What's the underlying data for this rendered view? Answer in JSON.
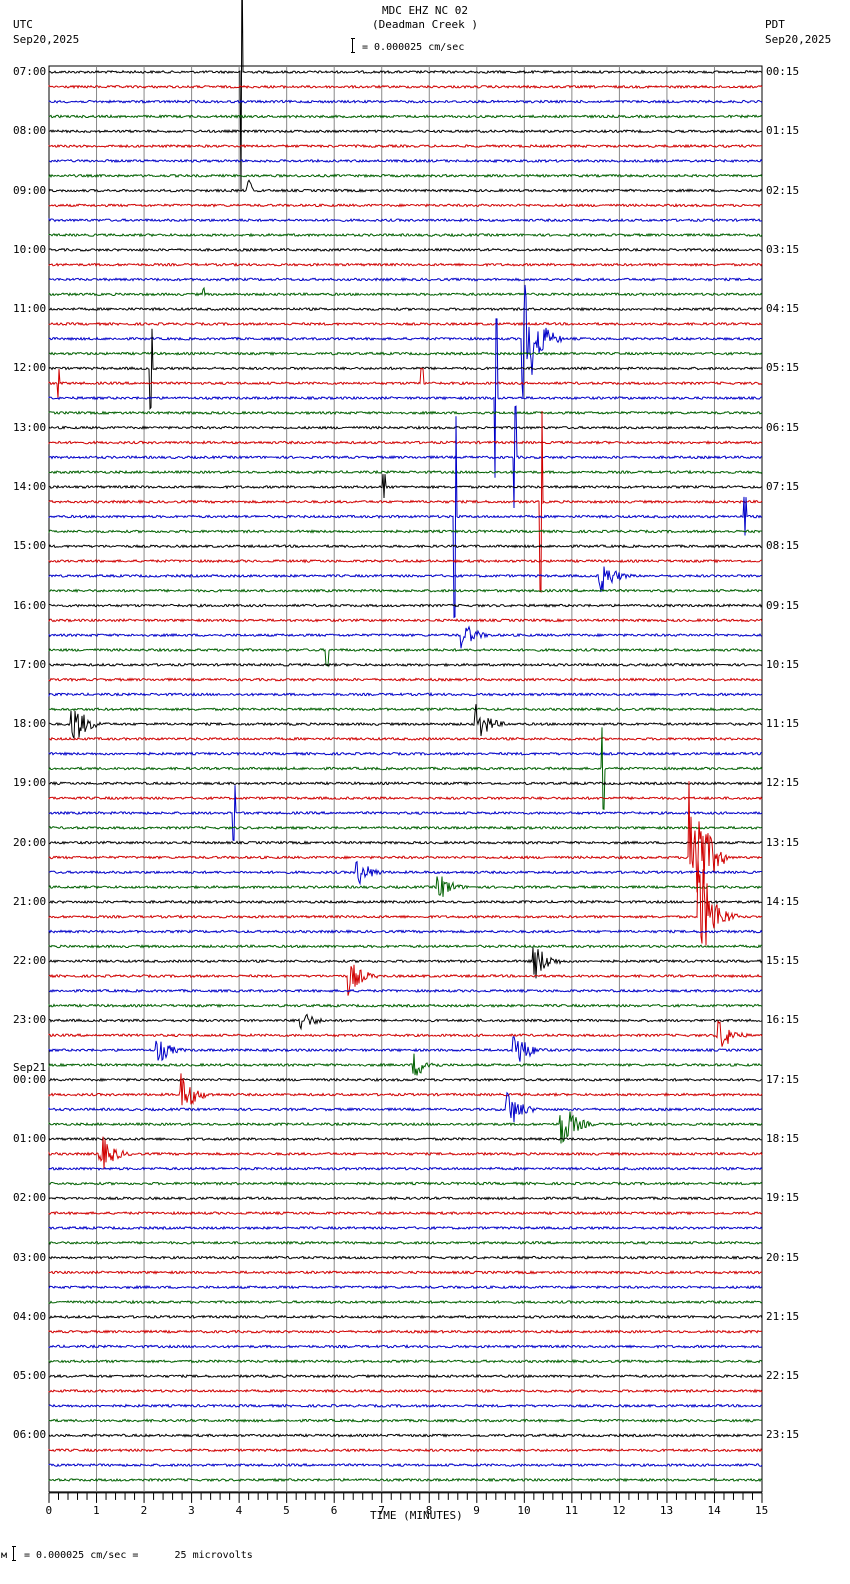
{
  "header": {
    "station_line": "MDC EHZ NC 02",
    "station_name": "(Deadman Creek )",
    "scale_text": "= 0.000025 cm/sec",
    "left_tz": "UTC",
    "left_date": "Sep20,2025",
    "right_tz": "PDT",
    "right_date": "Sep20,2025"
  },
  "footer": {
    "scale_text": "= 0.000025 cm/sec =      25 microvolts",
    "scale_prefix": "м"
  },
  "colors": {
    "trace_cycle": [
      "#000000",
      "#d00000",
      "#0000c8",
      "#006000"
    ],
    "grid": "#888888"
  },
  "chart_data": {
    "type": "line",
    "title": "MDC EHZ NC 02 (Deadman Creek )",
    "subtitle": "= 0.000025 cm/sec",
    "xlabel": "TIME (MINUTES)",
    "ylabel": "",
    "xlim": [
      0,
      15
    ],
    "x_ticks": [
      "0",
      "1",
      "2",
      "3",
      "4",
      "5",
      "6",
      "7",
      "8",
      "9",
      "10",
      "11",
      "12",
      "13",
      "14",
      "15"
    ],
    "grid": true,
    "traces_per_hour": 4,
    "trace_minutes": 15,
    "utc_labels": [
      "07:00",
      "08:00",
      "09:00",
      "10:00",
      "11:00",
      "12:00",
      "13:00",
      "14:00",
      "15:00",
      "16:00",
      "17:00",
      "18:00",
      "19:00",
      "20:00",
      "21:00",
      "22:00",
      "23:00",
      "00:00",
      "01:00",
      "02:00",
      "03:00",
      "04:00",
      "05:00",
      "06:00"
    ],
    "utc_date_change": {
      "label": "Sep21",
      "before_index": 17
    },
    "pdt_labels": [
      "00:15",
      "01:15",
      "02:15",
      "03:15",
      "04:15",
      "05:15",
      "06:15",
      "07:15",
      "08:15",
      "09:15",
      "10:15",
      "11:15",
      "12:15",
      "13:15",
      "14:15",
      "15:15",
      "16:15",
      "17:15",
      "18:15",
      "19:15",
      "20:15",
      "21:15",
      "22:15",
      "23:15"
    ],
    "events": [
      {
        "trace": 0,
        "minute": 4.05,
        "amp": 120,
        "kind": "spike"
      },
      {
        "trace": 8,
        "minute": 4.15,
        "amp": 20,
        "kind": "pulse"
      },
      {
        "trace": 15,
        "minute": 3.25,
        "amp": 6,
        "kind": "spike"
      },
      {
        "trace": 18,
        "minute": 10.0,
        "amp": 70,
        "kind": "quake"
      },
      {
        "trace": 20,
        "minute": 2.15,
        "amp": 40,
        "kind": "spike"
      },
      {
        "trace": 21,
        "minute": 0.2,
        "amp": 14,
        "kind": "spike"
      },
      {
        "trace": 21,
        "minute": 7.85,
        "amp": 14,
        "kind": "spike"
      },
      {
        "trace": 22,
        "minute": 9.4,
        "amp": 80,
        "kind": "spike"
      },
      {
        "trace": 26,
        "minute": 9.8,
        "amp": 50,
        "kind": "spike"
      },
      {
        "trace": 28,
        "minute": 7.05,
        "amp": 12,
        "kind": "spike"
      },
      {
        "trace": 29,
        "minute": 10.35,
        "amp": 90,
        "kind": "spike"
      },
      {
        "trace": 30,
        "minute": 8.55,
        "amp": 100,
        "kind": "spike"
      },
      {
        "trace": 30,
        "minute": 14.65,
        "amp": 20,
        "kind": "spike"
      },
      {
        "trace": 34,
        "minute": 11.6,
        "amp": 20,
        "kind": "quake"
      },
      {
        "trace": 38,
        "minute": 8.7,
        "amp": 15,
        "kind": "quake"
      },
      {
        "trace": 39,
        "minute": 5.85,
        "amp": 15,
        "kind": "spike"
      },
      {
        "trace": 44,
        "minute": 0.5,
        "amp": 25,
        "kind": "quake"
      },
      {
        "trace": 44,
        "minute": 9.0,
        "amp": 20,
        "kind": "quake"
      },
      {
        "trace": 47,
        "minute": 11.65,
        "amp": 40,
        "kind": "spike"
      },
      {
        "trace": 50,
        "minute": 3.9,
        "amp": 28,
        "kind": "spike"
      },
      {
        "trace": 53,
        "minute": 13.5,
        "amp": 110,
        "kind": "quake"
      },
      {
        "trace": 54,
        "minute": 6.5,
        "amp": 15,
        "kind": "quake"
      },
      {
        "trace": 55,
        "minute": 8.2,
        "amp": 15,
        "kind": "quake"
      },
      {
        "trace": 57,
        "minute": 13.7,
        "amp": 60,
        "kind": "quake"
      },
      {
        "trace": 60,
        "minute": 10.2,
        "amp": 22,
        "kind": "quake"
      },
      {
        "trace": 61,
        "minute": 6.3,
        "amp": 20,
        "kind": "quake"
      },
      {
        "trace": 64,
        "minute": 5.3,
        "amp": 12,
        "kind": "quake"
      },
      {
        "trace": 65,
        "minute": 14.1,
        "amp": 18,
        "kind": "quake"
      },
      {
        "trace": 66,
        "minute": 2.3,
        "amp": 14,
        "kind": "quake"
      },
      {
        "trace": 66,
        "minute": 9.8,
        "amp": 22,
        "kind": "quake"
      },
      {
        "trace": 67,
        "minute": 7.7,
        "amp": 14,
        "kind": "quake"
      },
      {
        "trace": 69,
        "minute": 2.8,
        "amp": 22,
        "kind": "quake"
      },
      {
        "trace": 70,
        "minute": 9.65,
        "amp": 22,
        "kind": "quake"
      },
      {
        "trace": 71,
        "minute": 10.8,
        "amp": 25,
        "kind": "quake"
      },
      {
        "trace": 73,
        "minute": 1.1,
        "amp": 20,
        "kind": "quake"
      }
    ]
  }
}
